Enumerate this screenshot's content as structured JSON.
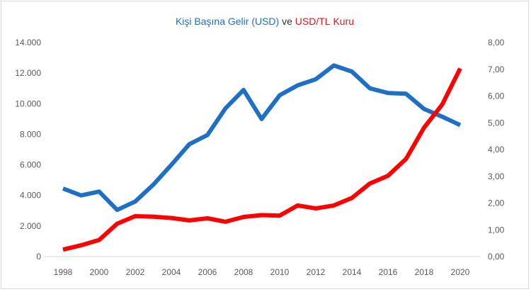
{
  "chart_data": {
    "type": "line",
    "title_parts": [
      {
        "text": "Kişi Başına Gelir (USD)",
        "color": "#1f6fc5"
      },
      {
        "text": " ve ",
        "color": "#333333"
      },
      {
        "text": "USD/TL Kuru",
        "color": "#e8141b"
      }
    ],
    "x": [
      1998,
      1999,
      2000,
      2001,
      2002,
      2003,
      2004,
      2005,
      2006,
      2007,
      2008,
      2009,
      2010,
      2011,
      2012,
      2013,
      2014,
      2015,
      2016,
      2017,
      2018,
      2019,
      2020
    ],
    "x_ticks": [
      "1998",
      "2000",
      "2002",
      "2004",
      "2006",
      "2008",
      "2010",
      "2012",
      "2014",
      "2016",
      "2018",
      "2020"
    ],
    "y_left": {
      "min": 0,
      "max": 14000,
      "ticks": [
        "0",
        "2.000",
        "4.000",
        "6.000",
        "8.000",
        "10.000",
        "12.000",
        "14.000"
      ]
    },
    "y_right": {
      "min": 0,
      "max": 8,
      "ticks": [
        "0,00",
        "1,00",
        "2,00",
        "3,00",
        "4,00",
        "5,00",
        "6,00",
        "7,00",
        "8,00"
      ]
    },
    "series": [
      {
        "axis": "left",
        "color": "#1f6fc5",
        "values": [
          4450,
          4000,
          4250,
          3050,
          3600,
          4700,
          6000,
          7350,
          7950,
          9700,
          10900,
          9000,
          10550,
          11200,
          11600,
          12500,
          12100,
          11000,
          10700,
          10650,
          9650,
          9150,
          8600
        ]
      },
      {
        "axis": "right",
        "color": "#ff0000",
        "values": [
          0.26,
          0.42,
          0.62,
          1.23,
          1.51,
          1.49,
          1.44,
          1.35,
          1.43,
          1.3,
          1.48,
          1.55,
          1.53,
          1.91,
          1.8,
          1.91,
          2.19,
          2.73,
          3.02,
          3.65,
          4.82,
          5.68,
          7.03
        ]
      }
    ],
    "grid": false,
    "legend": "none"
  }
}
